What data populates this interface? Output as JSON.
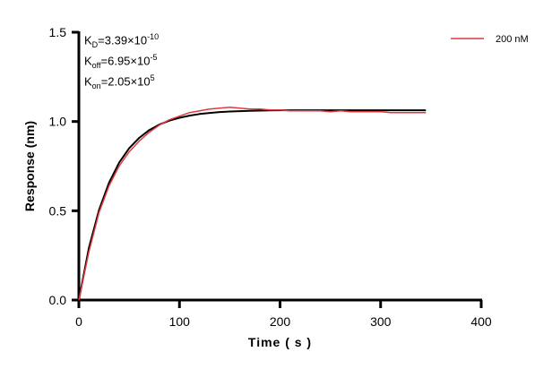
{
  "chart_data": {
    "type": "line",
    "xlabel": "Time ( s )",
    "ylabel": "Response (nm)",
    "xlim": [
      0,
      400
    ],
    "ylim": [
      0,
      1.5
    ],
    "xticks": [
      0,
      100,
      200,
      300,
      400
    ],
    "yticks": [
      0.0,
      0.5,
      1.0,
      1.5
    ],
    "ytick_labels": [
      "0.0",
      "0.5",
      "1.0",
      "1.5"
    ],
    "grid": false,
    "legend_position": "top-right",
    "annotations": {
      "kd": {
        "k": "K",
        "sub": "D",
        "val": "=3.39×10",
        "exp": "-10"
      },
      "koff": {
        "k": "K",
        "sub": "off",
        "val": "=6.95×10",
        "exp": "-5"
      },
      "kon": {
        "k": "K",
        "sub": "on",
        "val": "=2.05×10",
        "exp": "5"
      }
    },
    "x": [
      0,
      10,
      20,
      30,
      40,
      50,
      60,
      70,
      80,
      90,
      100,
      110,
      120,
      130,
      140,
      150,
      160,
      170,
      180,
      190,
      200,
      210,
      220,
      230,
      240,
      250,
      260,
      270,
      280,
      290,
      300,
      310,
      320,
      330,
      340,
      345
    ],
    "series": [
      {
        "name": "200 nM",
        "color": "#e0393e",
        "values": [
          0,
          0.27,
          0.49,
          0.64,
          0.75,
          0.83,
          0.89,
          0.94,
          0.98,
          1.01,
          1.03,
          1.05,
          1.06,
          1.07,
          1.075,
          1.08,
          1.075,
          1.07,
          1.07,
          1.065,
          1.065,
          1.06,
          1.06,
          1.06,
          1.06,
          1.055,
          1.06,
          1.055,
          1.055,
          1.055,
          1.055,
          1.05,
          1.05,
          1.05,
          1.05,
          1.05
        ]
      },
      {
        "color": "#000000",
        "values": [
          0,
          0.292,
          0.504,
          0.657,
          0.769,
          0.85,
          0.908,
          0.952,
          0.983,
          1.005,
          1.021,
          1.033,
          1.042,
          1.048,
          1.053,
          1.056,
          1.058,
          1.06,
          1.061,
          1.062,
          1.063,
          1.063,
          1.063,
          1.063,
          1.063,
          1.063,
          1.063,
          1.063,
          1.063,
          1.063,
          1.063,
          1.063,
          1.063,
          1.063,
          1.063,
          1.063
        ]
      }
    ]
  }
}
